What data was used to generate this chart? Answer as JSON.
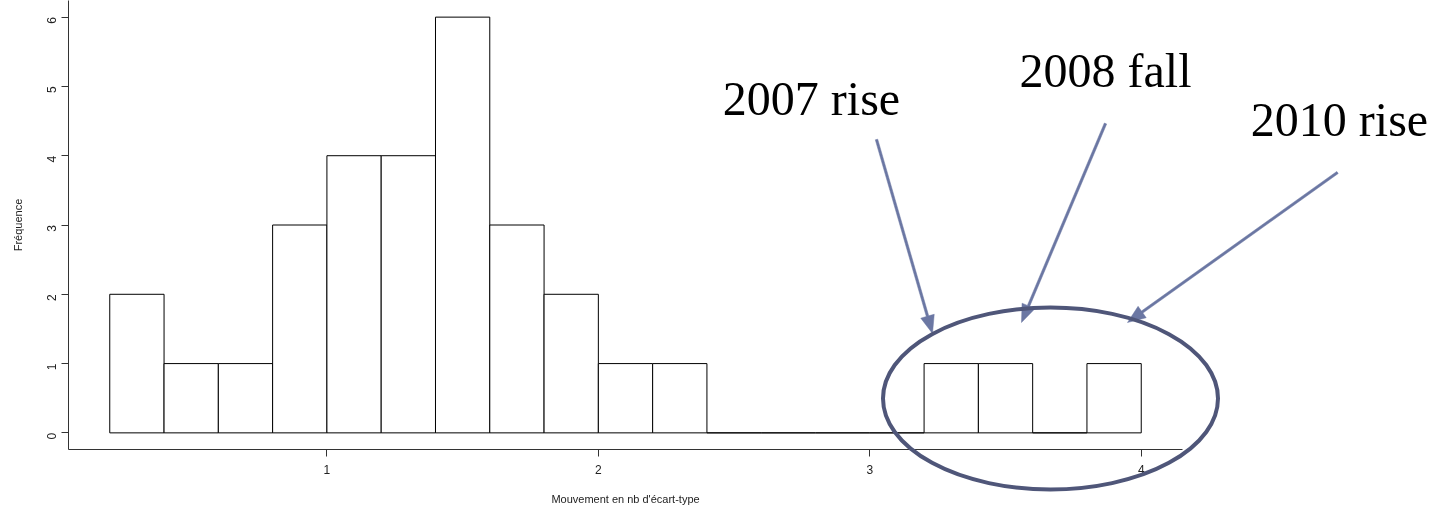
{
  "chart_data": {
    "type": "histogram",
    "xlabel": "Mouvement en nb d'écart-type",
    "ylabel": "Fréquence",
    "bins": [
      0.2,
      0.4,
      0.6,
      0.8,
      1.0,
      1.2,
      1.4,
      1.6,
      1.8,
      2.0,
      2.2,
      2.4,
      2.6,
      2.8,
      3.0,
      3.2,
      3.4,
      3.6,
      3.8,
      4.0
    ],
    "values": [
      2,
      1,
      1,
      3,
      4,
      4,
      6,
      3,
      2,
      1,
      1,
      0,
      0,
      0,
      0,
      1,
      1,
      0,
      1
    ],
    "color": "#000000",
    "xlim": [
      0.048,
      4.152
    ],
    "ylim": [
      -0.24,
      6.24
    ],
    "xticks": [
      1,
      2,
      3,
      4
    ],
    "yticks": [
      0,
      1,
      2,
      3,
      4,
      5,
      6
    ],
    "grid": false,
    "annotations": [
      "2007 rise",
      "2008 fall",
      "2010 rise"
    ]
  }
}
